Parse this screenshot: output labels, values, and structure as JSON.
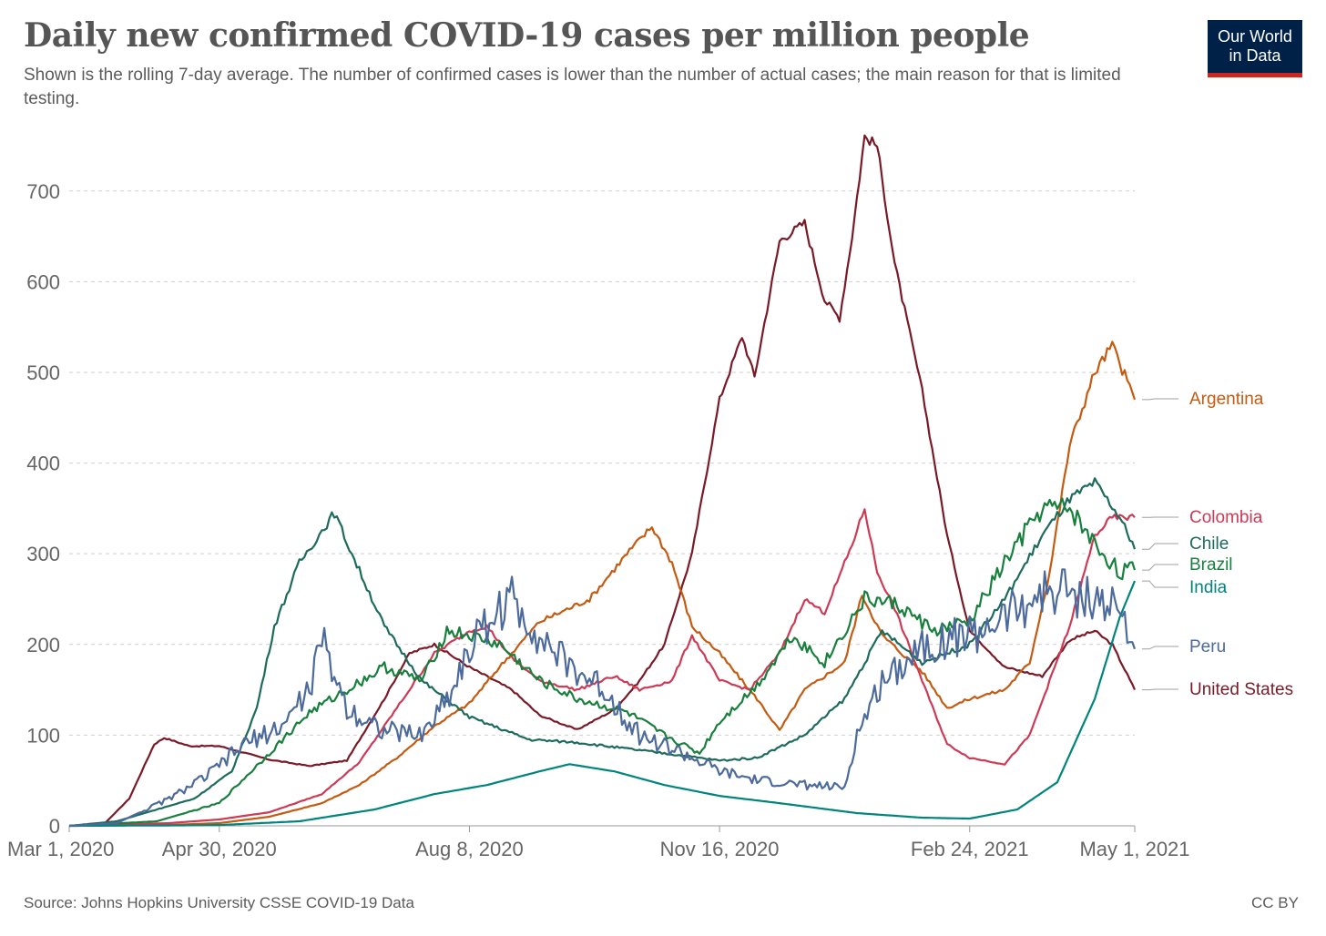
{
  "header": {
    "title": "Daily new confirmed COVID-19 cases per million people",
    "subtitle": "Shown is the rolling 7-day average. The number of confirmed cases is lower than the number of actual cases; the main reason for that is limited testing."
  },
  "logo": {
    "line1": "Our World",
    "line2": "in Data",
    "bg": "#002147",
    "accent": "#ce261e"
  },
  "footer": {
    "source": "Source: Johns Hopkins University CSSE COVID-19 Data",
    "license": "CC BY"
  },
  "chart_data": {
    "type": "line",
    "title": "Daily new confirmed COVID-19 cases per million people",
    "xlabel": "",
    "ylabel": "",
    "x_start": "2020-03-01",
    "x_end": "2021-05-01",
    "xlim": [
      "2020-03-01",
      "2021-05-01"
    ],
    "ylim": [
      0,
      760
    ],
    "yticks": [
      0,
      100,
      200,
      300,
      400,
      500,
      600,
      700
    ],
    "xticks": [
      {
        "date": "2020-03-01",
        "label": "Mar 1, 2020"
      },
      {
        "date": "2020-04-30",
        "label": "Apr 30, 2020"
      },
      {
        "date": "2020-08-08",
        "label": "Aug 8, 2020"
      },
      {
        "date": "2020-11-16",
        "label": "Nov 16, 2020"
      },
      {
        "date": "2021-02-24",
        "label": "Feb 24, 2021"
      },
      {
        "date": "2021-05-01",
        "label": "May 1, 2021"
      }
    ],
    "grid": "horizontal dashed",
    "legend": "right, inline labels at line ends",
    "series": [
      {
        "name": "United States",
        "color": "#7a1a27",
        "points": [
          [
            "2020-03-01",
            0
          ],
          [
            "2020-03-15",
            2
          ],
          [
            "2020-03-25",
            30
          ],
          [
            "2020-04-04",
            90
          ],
          [
            "2020-04-08",
            97
          ],
          [
            "2020-04-18",
            88
          ],
          [
            "2020-04-30",
            88
          ],
          [
            "2020-05-20",
            73
          ],
          [
            "2020-06-05",
            66
          ],
          [
            "2020-06-20",
            72
          ],
          [
            "2020-07-05",
            140
          ],
          [
            "2020-07-15",
            190
          ],
          [
            "2020-07-25",
            200
          ],
          [
            "2020-08-08",
            175
          ],
          [
            "2020-08-25",
            150
          ],
          [
            "2020-09-05",
            122
          ],
          [
            "2020-09-20",
            106
          ],
          [
            "2020-10-05",
            128
          ],
          [
            "2020-10-15",
            160
          ],
          [
            "2020-10-25",
            200
          ],
          [
            "2020-11-05",
            300
          ],
          [
            "2020-11-16",
            470
          ],
          [
            "2020-11-25",
            540
          ],
          [
            "2020-11-30",
            495
          ],
          [
            "2020-12-10",
            645
          ],
          [
            "2020-12-20",
            665
          ],
          [
            "2020-12-28",
            580
          ],
          [
            "2021-01-03",
            560
          ],
          [
            "2021-01-08",
            650
          ],
          [
            "2021-01-13",
            760
          ],
          [
            "2021-01-18",
            750
          ],
          [
            "2021-01-25",
            620
          ],
          [
            "2021-02-05",
            480
          ],
          [
            "2021-02-15",
            320
          ],
          [
            "2021-02-24",
            215
          ],
          [
            "2021-03-10",
            175
          ],
          [
            "2021-03-25",
            165
          ],
          [
            "2021-04-05",
            205
          ],
          [
            "2021-04-15",
            215
          ],
          [
            "2021-04-22",
            200
          ],
          [
            "2021-05-01",
            150
          ]
        ]
      },
      {
        "name": "Argentina",
        "color": "#c55a11",
        "points": [
          [
            "2020-03-01",
            0
          ],
          [
            "2020-04-10",
            1
          ],
          [
            "2020-04-30",
            3
          ],
          [
            "2020-05-20",
            10
          ],
          [
            "2020-06-10",
            25
          ],
          [
            "2020-06-25",
            45
          ],
          [
            "2020-07-10",
            75
          ],
          [
            "2020-07-25",
            110
          ],
          [
            "2020-08-08",
            135
          ],
          [
            "2020-08-20",
            175
          ],
          [
            "2020-09-05",
            225
          ],
          [
            "2020-09-25",
            250
          ],
          [
            "2020-10-10",
            300
          ],
          [
            "2020-10-20",
            330
          ],
          [
            "2020-10-28",
            290
          ],
          [
            "2020-11-05",
            220
          ],
          [
            "2020-11-16",
            190
          ],
          [
            "2020-12-01",
            140
          ],
          [
            "2020-12-10",
            105
          ],
          [
            "2020-12-20",
            150
          ],
          [
            "2021-01-05",
            180
          ],
          [
            "2021-01-12",
            255
          ],
          [
            "2021-01-20",
            210
          ],
          [
            "2021-02-05",
            170
          ],
          [
            "2021-02-15",
            130
          ],
          [
            "2021-02-24",
            140
          ],
          [
            "2021-03-10",
            150
          ],
          [
            "2021-03-20",
            180
          ],
          [
            "2021-03-28",
            280
          ],
          [
            "2021-04-05",
            420
          ],
          [
            "2021-04-15",
            500
          ],
          [
            "2021-04-22",
            530
          ],
          [
            "2021-05-01",
            470
          ]
        ]
      },
      {
        "name": "Colombia",
        "color": "#ce3a55",
        "points": [
          [
            "2020-03-01",
            0
          ],
          [
            "2020-04-10",
            3
          ],
          [
            "2020-04-30",
            7
          ],
          [
            "2020-05-20",
            15
          ],
          [
            "2020-06-10",
            35
          ],
          [
            "2020-06-25",
            70
          ],
          [
            "2020-07-10",
            130
          ],
          [
            "2020-07-25",
            190
          ],
          [
            "2020-08-08",
            215
          ],
          [
            "2020-08-15",
            220
          ],
          [
            "2020-08-25",
            185
          ],
          [
            "2020-09-05",
            160
          ],
          [
            "2020-09-20",
            150
          ],
          [
            "2020-10-05",
            165
          ],
          [
            "2020-10-15",
            150
          ],
          [
            "2020-10-28",
            160
          ],
          [
            "2020-11-05",
            210
          ],
          [
            "2020-11-16",
            160
          ],
          [
            "2020-11-28",
            150
          ],
          [
            "2020-12-10",
            190
          ],
          [
            "2020-12-20",
            250
          ],
          [
            "2020-12-28",
            235
          ],
          [
            "2021-01-08",
            310
          ],
          [
            "2021-01-13",
            350
          ],
          [
            "2021-01-18",
            280
          ],
          [
            "2021-01-25",
            240
          ],
          [
            "2021-02-05",
            160
          ],
          [
            "2021-02-15",
            90
          ],
          [
            "2021-02-24",
            75
          ],
          [
            "2021-03-10",
            68
          ],
          [
            "2021-03-20",
            100
          ],
          [
            "2021-03-28",
            160
          ],
          [
            "2021-04-05",
            220
          ],
          [
            "2021-04-15",
            320
          ],
          [
            "2021-04-22",
            340
          ],
          [
            "2021-05-01",
            340
          ]
        ]
      },
      {
        "name": "Chile",
        "color": "#1d6b5c",
        "points": [
          [
            "2020-03-01",
            0
          ],
          [
            "2020-03-20",
            5
          ],
          [
            "2020-04-05",
            18
          ],
          [
            "2020-04-20",
            30
          ],
          [
            "2020-05-05",
            60
          ],
          [
            "2020-05-15",
            130
          ],
          [
            "2020-05-22",
            220
          ],
          [
            "2020-06-01",
            290
          ],
          [
            "2020-06-10",
            325
          ],
          [
            "2020-06-15",
            345
          ],
          [
            "2020-06-22",
            300
          ],
          [
            "2020-07-05",
            220
          ],
          [
            "2020-07-20",
            160
          ],
          [
            "2020-08-08",
            120
          ],
          [
            "2020-09-01",
            95
          ],
          [
            "2020-09-20",
            92
          ],
          [
            "2020-10-10",
            85
          ],
          [
            "2020-10-25",
            80
          ],
          [
            "2020-11-16",
            72
          ],
          [
            "2020-12-01",
            75
          ],
          [
            "2020-12-20",
            100
          ],
          [
            "2021-01-05",
            140
          ],
          [
            "2021-01-20",
            215
          ],
          [
            "2021-02-05",
            180
          ],
          [
            "2021-02-24",
            200
          ],
          [
            "2021-03-10",
            250
          ],
          [
            "2021-03-25",
            320
          ],
          [
            "2021-04-05",
            360
          ],
          [
            "2021-04-15",
            378
          ],
          [
            "2021-04-25",
            340
          ],
          [
            "2021-05-01",
            305
          ]
        ]
      },
      {
        "name": "Brazil",
        "color": "#18803d",
        "points": [
          [
            "2020-03-01",
            0
          ],
          [
            "2020-04-05",
            5
          ],
          [
            "2020-04-30",
            25
          ],
          [
            "2020-05-20",
            80
          ],
          [
            "2020-06-05",
            125
          ],
          [
            "2020-06-20",
            150
          ],
          [
            "2020-07-05",
            175
          ],
          [
            "2020-07-20",
            160
          ],
          [
            "2020-07-30",
            215
          ],
          [
            "2020-08-08",
            210
          ],
          [
            "2020-08-20",
            200
          ],
          [
            "2020-09-05",
            160
          ],
          [
            "2020-09-20",
            140
          ],
          [
            "2020-10-10",
            125
          ],
          [
            "2020-10-25",
            100
          ],
          [
            "2020-11-08",
            80
          ],
          [
            "2020-11-16",
            115
          ],
          [
            "2020-12-01",
            155
          ],
          [
            "2020-12-15",
            210
          ],
          [
            "2020-12-28",
            180
          ],
          [
            "2021-01-13",
            250
          ],
          [
            "2021-01-25",
            245
          ],
          [
            "2021-02-10",
            215
          ],
          [
            "2021-02-24",
            225
          ],
          [
            "2021-03-10",
            290
          ],
          [
            "2021-03-25",
            350
          ],
          [
            "2021-04-05",
            350
          ],
          [
            "2021-04-15",
            310
          ],
          [
            "2021-04-25",
            280
          ],
          [
            "2021-05-01",
            282
          ]
        ]
      },
      {
        "name": "India",
        "color": "#00847e",
        "points": [
          [
            "2020-03-01",
            0
          ],
          [
            "2020-04-15",
            0.5
          ],
          [
            "2020-05-01",
            1
          ],
          [
            "2020-06-01",
            5
          ],
          [
            "2020-07-01",
            18
          ],
          [
            "2020-07-25",
            35
          ],
          [
            "2020-08-15",
            45
          ],
          [
            "2020-09-05",
            60
          ],
          [
            "2020-09-17",
            68
          ],
          [
            "2020-10-05",
            60
          ],
          [
            "2020-10-25",
            45
          ],
          [
            "2020-11-16",
            33
          ],
          [
            "2020-12-10",
            25
          ],
          [
            "2021-01-10",
            14
          ],
          [
            "2021-02-05",
            9
          ],
          [
            "2021-02-24",
            8
          ],
          [
            "2021-03-15",
            18
          ],
          [
            "2021-03-31",
            48
          ],
          [
            "2021-04-15",
            140
          ],
          [
            "2021-04-25",
            230
          ],
          [
            "2021-05-01",
            270
          ]
        ]
      },
      {
        "name": "Peru",
        "color": "#4c6a9c",
        "points": [
          [
            "2020-03-01",
            0
          ],
          [
            "2020-03-20",
            3
          ],
          [
            "2020-04-10",
            30
          ],
          [
            "2020-04-25",
            55
          ],
          [
            "2020-05-10",
            90
          ],
          [
            "2020-05-25",
            110
          ],
          [
            "2020-06-05",
            150
          ],
          [
            "2020-06-10",
            205
          ],
          [
            "2020-06-20",
            130
          ],
          [
            "2020-07-05",
            105
          ],
          [
            "2020-07-20",
            100
          ],
          [
            "2020-08-01",
            150
          ],
          [
            "2020-08-08",
            195
          ],
          [
            "2020-08-15",
            225
          ],
          [
            "2020-08-25",
            250
          ],
          [
            "2020-09-05",
            210
          ],
          [
            "2020-09-15",
            180
          ],
          [
            "2020-10-01",
            150
          ],
          [
            "2020-10-15",
            100
          ],
          [
            "2020-11-01",
            80
          ],
          [
            "2020-11-16",
            60
          ],
          [
            "2020-12-01",
            50
          ],
          [
            "2020-12-20",
            45
          ],
          [
            "2021-01-05",
            42
          ],
          [
            "2021-01-10",
            100
          ],
          [
            "2021-01-20",
            160
          ],
          [
            "2021-02-05",
            200
          ],
          [
            "2021-02-24",
            210
          ],
          [
            "2021-03-10",
            230
          ],
          [
            "2021-03-25",
            255
          ],
          [
            "2021-04-05",
            260
          ],
          [
            "2021-04-15",
            250
          ],
          [
            "2021-04-25",
            235
          ],
          [
            "2021-05-01",
            195
          ]
        ]
      }
    ]
  }
}
